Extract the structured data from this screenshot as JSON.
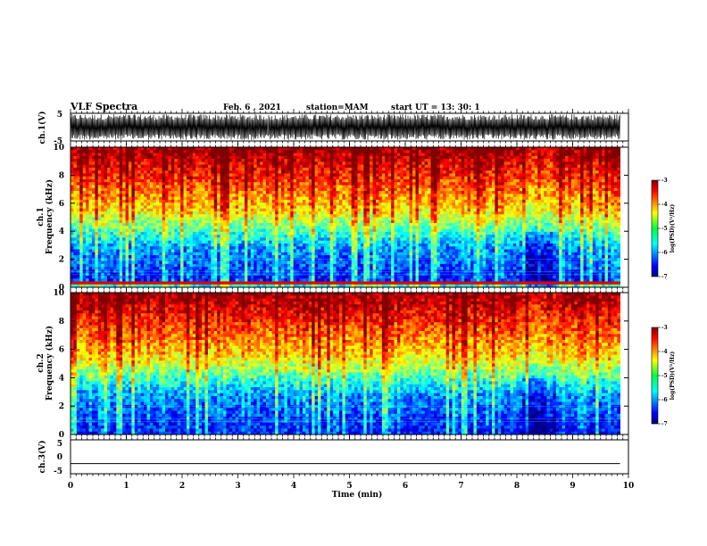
{
  "header": {
    "title": "VLF Spectra",
    "date": "Feb. 6 , 2021",
    "station": "station=MAM",
    "start": "start UT =  13: 30: 1"
  },
  "chart_data": [
    {
      "type": "line",
      "name": "ch1-waveform",
      "ylabel": "ch.1(V)",
      "ylim": [
        -5,
        5
      ],
      "y_ticks": [
        "5",
        "-5"
      ],
      "xlim": [
        0,
        10
      ],
      "description_level": "dense oscillation spanning approximately -4.5 to 4.5 V"
    },
    {
      "type": "heatmap",
      "name": "ch1-spectrogram",
      "ylabel_top": "ch.1",
      "ylabel": "Frequency (kHz)",
      "ylim": [
        0,
        10
      ],
      "y_ticks": [
        "0",
        "2",
        "4",
        "6",
        "8",
        "10"
      ],
      "xlim": [
        0,
        9.85
      ],
      "colorbar": {
        "label": "log(PSD)(V²/Hz)",
        "range": [
          -7,
          -3
        ],
        "ticks": [
          "-3",
          "-4",
          "-5",
          "-6",
          "-7"
        ]
      }
    },
    {
      "type": "heatmap",
      "name": "ch2-spectrogram",
      "ylabel_top": "ch.2",
      "ylabel": "Frequency (kHz)",
      "ylim": [
        0,
        10
      ],
      "y_ticks": [
        "0",
        "2",
        "4",
        "6",
        "8",
        "10"
      ],
      "xlim": [
        0,
        9.85
      ],
      "colorbar": {
        "label": "log(PSD)(V²/Hz)",
        "range": [
          -7,
          -3
        ],
        "ticks": [
          "-3",
          "-4",
          "-5",
          "-6",
          "-7"
        ]
      }
    },
    {
      "type": "line",
      "name": "ch3-waveform",
      "ylabel": "ch.3(V)",
      "ylim": [
        -5,
        5
      ],
      "y_ticks": [
        "5",
        "0",
        "-5"
      ],
      "y_value": -2,
      "xlim": [
        0,
        10
      ]
    }
  ],
  "xaxis": {
    "label": "Time (min)",
    "ticks": [
      "0",
      "1",
      "2",
      "3",
      "4",
      "5",
      "6",
      "7",
      "8",
      "9",
      "10"
    ],
    "range": [
      0,
      10
    ]
  }
}
